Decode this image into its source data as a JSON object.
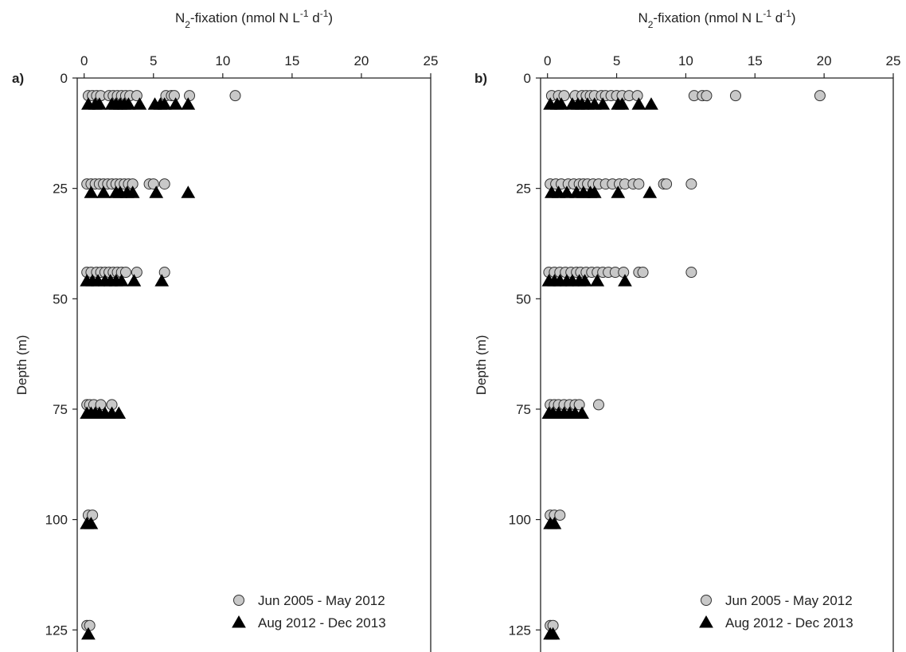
{
  "chart_data": [
    {
      "type": "scatter",
      "panel_label": "a)",
      "xlabel": [
        {
          "text": "N"
        },
        {
          "text": "2",
          "shift": "sub"
        },
        {
          "text": "-fixation (nmol N L"
        },
        {
          "text": "-1",
          "shift": "super"
        },
        {
          "text": " d"
        },
        {
          "text": "-1",
          "shift": "super"
        },
        {
          "text": ")"
        }
      ],
      "ylabel": "Depth (m)",
      "xlim": [
        -0.5,
        25
      ],
      "xticks": [
        0,
        5,
        10,
        15,
        20,
        25
      ],
      "ylim": [
        0,
        130
      ],
      "yticks": [
        0,
        25,
        50,
        75,
        100,
        125
      ],
      "y_inverted": true,
      "legend": "lower right",
      "series": [
        {
          "name": "Jun 2005 - May 2012",
          "color": "#c8c8c8",
          "marker": "circle",
          "x": [
            0.3,
            0.6,
            0.9,
            1.2,
            1.8,
            2.1,
            2.4,
            2.7,
            3.0,
            3.3,
            3.8,
            5.9,
            6.3,
            6.5,
            7.6,
            10.9,
            0.2,
            0.5,
            0.8,
            1.1,
            1.4,
            1.7,
            2.0,
            2.3,
            2.6,
            2.9,
            3.2,
            3.5,
            4.7,
            5.0,
            5.8,
            0.2,
            0.5,
            0.9,
            1.2,
            1.5,
            1.8,
            2.1,
            2.4,
            2.7,
            3.0,
            3.8,
            5.8,
            0.2,
            0.4,
            0.7,
            1.2,
            2.0,
            0.3,
            0.6,
            0.2,
            0.4
          ],
          "values": [
            4,
            4,
            4,
            4,
            4,
            4,
            4,
            4,
            4,
            4,
            4,
            4,
            4,
            4,
            4,
            4,
            24,
            24,
            24,
            24,
            24,
            24,
            24,
            24,
            24,
            24,
            24,
            24,
            24,
            24,
            24,
            44,
            44,
            44,
            44,
            44,
            44,
            44,
            44,
            44,
            44,
            44,
            44,
            74,
            74,
            74,
            74,
            74,
            99,
            99,
            124,
            124
          ]
        },
        {
          "name": "Aug 2012 - Dec 2013",
          "color": "#000000",
          "marker": "triangle",
          "x": [
            0.3,
            0.8,
            1.1,
            2.0,
            2.3,
            2.6,
            2.9,
            3.2,
            4.0,
            5.1,
            5.5,
            5.8,
            6.6,
            7.5,
            0.5,
            1.4,
            2.3,
            2.6,
            3.1,
            3.5,
            5.2,
            7.5,
            0.2,
            0.6,
            1.0,
            1.5,
            1.9,
            2.3,
            2.7,
            3.6,
            5.6,
            0.2,
            0.5,
            0.8,
            1.1,
            1.5,
            2.0,
            2.5,
            0.2,
            0.5,
            0.3
          ],
          "values": [
            6,
            6,
            6,
            6,
            6,
            6,
            6,
            6,
            6,
            6,
            6,
            6,
            6,
            6,
            26,
            26,
            26,
            26,
            26,
            26,
            26,
            26,
            46,
            46,
            46,
            46,
            46,
            46,
            46,
            46,
            46,
            76,
            76,
            76,
            76,
            76,
            76,
            76,
            101,
            101,
            126
          ]
        }
      ]
    },
    {
      "type": "scatter",
      "panel_label": "b)",
      "xlabel": [
        {
          "text": "N"
        },
        {
          "text": "2",
          "shift": "sub"
        },
        {
          "text": "-fixation (nmol N L"
        },
        {
          "text": "-1",
          "shift": "super"
        },
        {
          "text": " d"
        },
        {
          "text": "-1",
          "shift": "super"
        },
        {
          "text": ")"
        }
      ],
      "ylabel": "Depth (m)",
      "xlim": [
        -0.5,
        25
      ],
      "xticks": [
        0,
        5,
        10,
        15,
        20,
        25
      ],
      "ylim": [
        0,
        130
      ],
      "yticks": [
        0,
        25,
        50,
        75,
        100,
        125
      ],
      "y_inverted": true,
      "legend": "lower right",
      "series": [
        {
          "name": "Jun 2005 - May 2012",
          "color": "#c8c8c8",
          "marker": "circle",
          "x": [
            0.3,
            0.8,
            1.2,
            2.0,
            2.5,
            2.8,
            3.1,
            3.4,
            3.9,
            4.2,
            4.6,
            5.0,
            5.4,
            5.9,
            6.5,
            10.6,
            11.2,
            11.5,
            13.6,
            19.7,
            0.2,
            0.6,
            1.0,
            1.5,
            1.9,
            2.3,
            2.6,
            2.9,
            3.3,
            3.7,
            4.2,
            4.7,
            5.2,
            5.6,
            6.2,
            6.6,
            8.4,
            8.6,
            10.4,
            0.1,
            0.5,
            0.9,
            1.3,
            1.7,
            2.1,
            2.4,
            2.8,
            3.2,
            3.6,
            4.0,
            4.4,
            4.9,
            5.5,
            6.6,
            6.9,
            10.4,
            0.2,
            0.5,
            0.8,
            1.2,
            1.6,
            2.0,
            2.3,
            3.7,
            0.2,
            0.5,
            0.9,
            0.2,
            0.4
          ],
          "values": [
            4,
            4,
            4,
            4,
            4,
            4,
            4,
            4,
            4,
            4,
            4,
            4,
            4,
            4,
            4,
            4,
            4,
            4,
            4,
            4,
            24,
            24,
            24,
            24,
            24,
            24,
            24,
            24,
            24,
            24,
            24,
            24,
            24,
            24,
            24,
            24,
            24,
            24,
            24,
            44,
            44,
            44,
            44,
            44,
            44,
            44,
            44,
            44,
            44,
            44,
            44,
            44,
            44,
            44,
            44,
            44,
            74,
            74,
            74,
            74,
            74,
            74,
            74,
            74,
            99,
            99,
            99,
            124,
            124
          ]
        },
        {
          "name": "Aug 2012 - Dec 2013",
          "color": "#000000",
          "marker": "triangle",
          "x": [
            0.2,
            0.7,
            1.0,
            1.8,
            2.2,
            2.5,
            2.9,
            3.4,
            4.0,
            5.1,
            5.4,
            6.6,
            7.5,
            0.3,
            0.8,
            1.4,
            2.1,
            2.6,
            3.1,
            3.4,
            5.1,
            7.4,
            0.1,
            0.5,
            0.9,
            1.4,
            1.8,
            2.3,
            2.7,
            3.6,
            5.6,
            0.1,
            0.4,
            0.8,
            1.2,
            1.6,
            2.0,
            2.5,
            0.2,
            0.5,
            0.2,
            0.4
          ],
          "values": [
            6,
            6,
            6,
            6,
            6,
            6,
            6,
            6,
            6,
            6,
            6,
            6,
            6,
            26,
            26,
            26,
            26,
            26,
            26,
            26,
            26,
            26,
            46,
            46,
            46,
            46,
            46,
            46,
            46,
            46,
            46,
            76,
            76,
            76,
            76,
            76,
            76,
            76,
            101,
            101,
            126,
            126
          ]
        }
      ]
    }
  ]
}
